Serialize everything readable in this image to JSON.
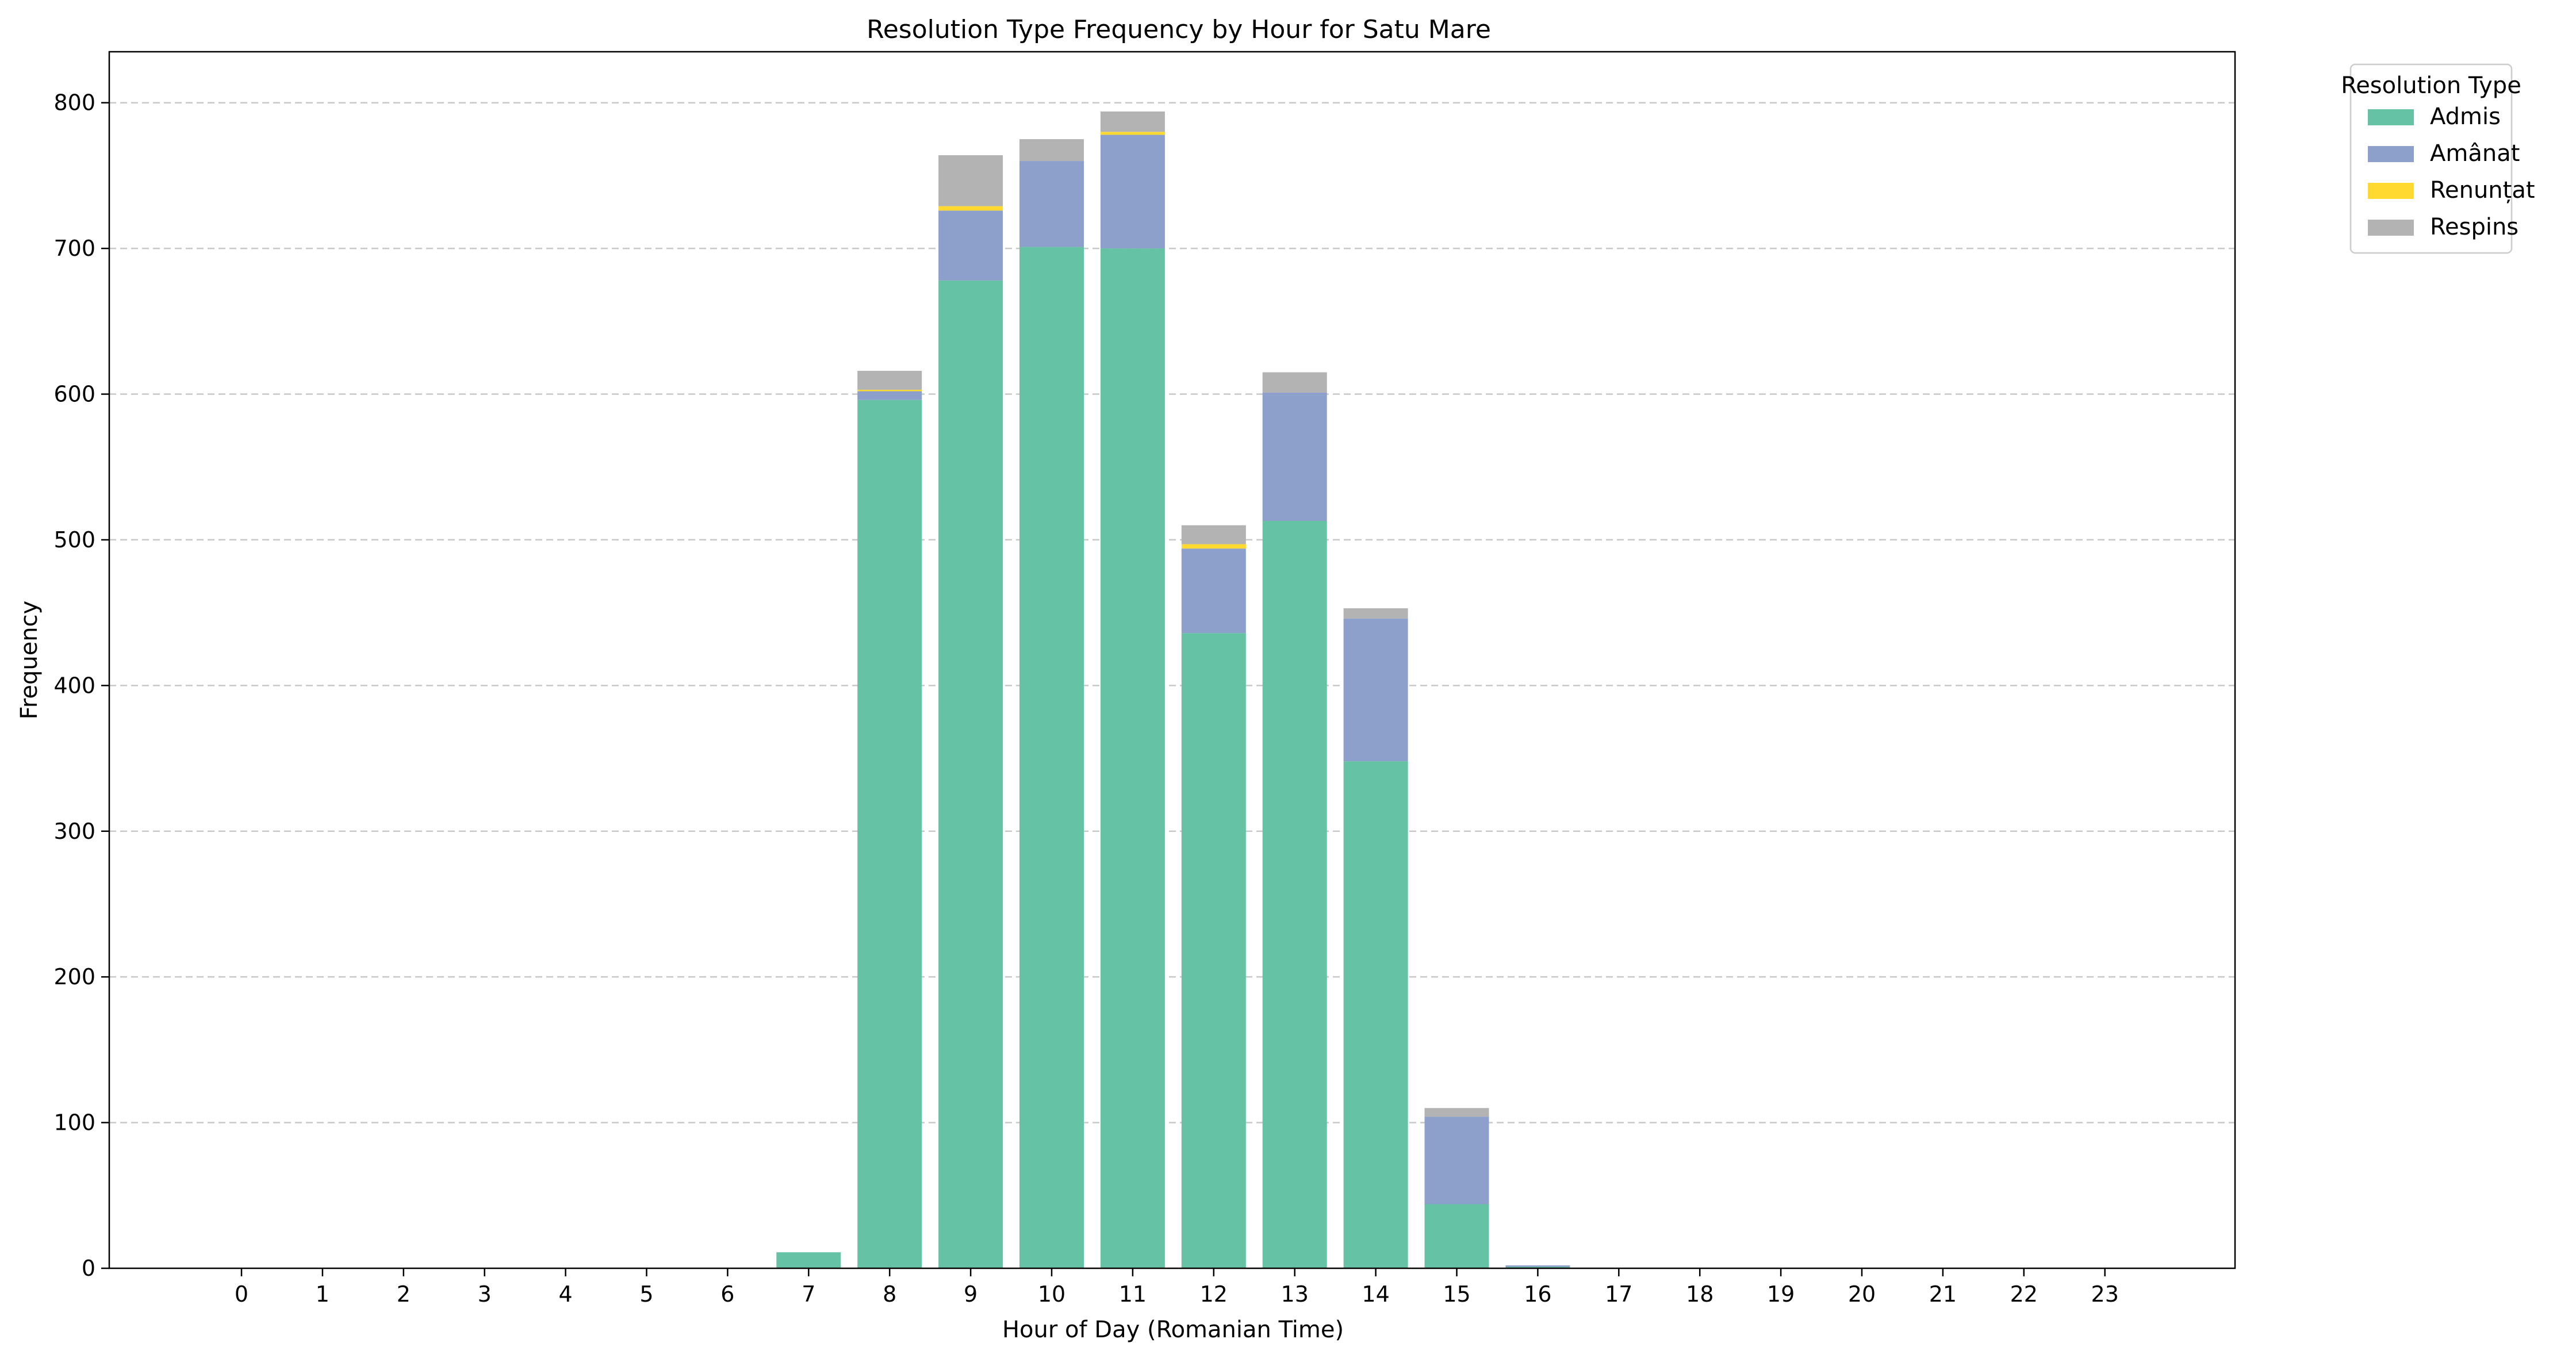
{
  "chart_data": {
    "type": "bar",
    "stacked": true,
    "title": "Resolution Type Frequency by Hour for Satu Mare",
    "xlabel": "Hour of Day (Romanian Time)",
    "ylabel": "Frequency",
    "ylim": [
      0,
      835
    ],
    "yticks": [
      0,
      100,
      200,
      300,
      400,
      500,
      600,
      700,
      800
    ],
    "grid": "y-dashed",
    "legend_title": "Resolution Type",
    "legend_position": "outside-top-right",
    "categories": [
      "0",
      "1",
      "2",
      "3",
      "4",
      "5",
      "6",
      "7",
      "8",
      "9",
      "10",
      "11",
      "12",
      "13",
      "14",
      "15",
      "16",
      "17",
      "18",
      "19",
      "20",
      "21",
      "22",
      "23"
    ],
    "series": [
      {
        "name": "Admis",
        "color": "#66c2a5",
        "values": [
          0,
          0,
          0,
          0,
          0,
          0,
          0,
          11,
          596,
          678,
          701,
          700,
          436,
          513,
          348,
          44,
          1,
          0,
          0,
          0,
          0,
          0,
          0,
          0
        ]
      },
      {
        "name": "Amânat",
        "color": "#8da0cb",
        "values": [
          0,
          0,
          0,
          0,
          0,
          0,
          0,
          0,
          6,
          48,
          59,
          78,
          58,
          88,
          98,
          60,
          1,
          0,
          0,
          0,
          0,
          0,
          0,
          0
        ]
      },
      {
        "name": "Renunțat",
        "color": "#ffd92f",
        "values": [
          0,
          0,
          0,
          0,
          0,
          0,
          0,
          0,
          1,
          3,
          0,
          2,
          3,
          0,
          0,
          0,
          0,
          0,
          0,
          0,
          0,
          0,
          0,
          0
        ]
      },
      {
        "name": "Respins",
        "color": "#b3b3b3",
        "values": [
          0,
          0,
          0,
          0,
          0,
          0,
          0,
          0,
          13,
          35,
          15,
          14,
          13,
          14,
          7,
          6,
          0,
          0,
          0,
          0,
          0,
          0,
          0,
          0
        ]
      }
    ]
  }
}
